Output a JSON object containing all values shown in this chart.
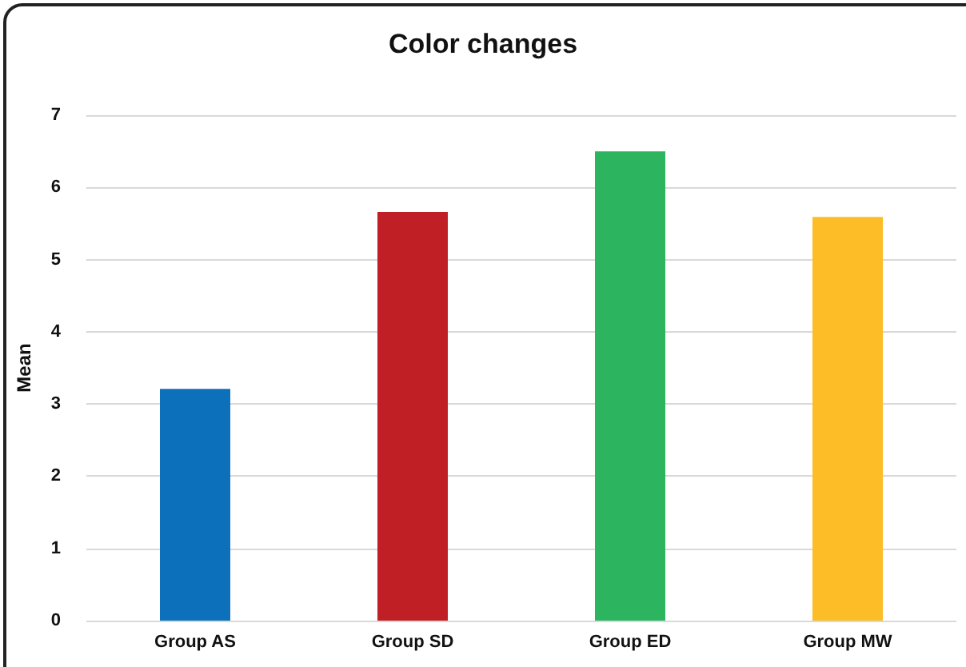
{
  "chart_data": {
    "type": "bar",
    "title": "Color changes",
    "ylabel": "Mean",
    "categories": [
      "Group AS",
      "Group SD",
      "Group ED",
      "Group MW"
    ],
    "values": [
      3.21,
      5.66,
      6.5,
      5.59
    ],
    "colors": [
      "#0c70ba",
      "#c01f25",
      "#2db45f",
      "#fcbd27"
    ],
    "ylim": [
      0,
      7
    ],
    "yticks": [
      0,
      1,
      2,
      3,
      4,
      5,
      6,
      7
    ],
    "grid": "y"
  }
}
